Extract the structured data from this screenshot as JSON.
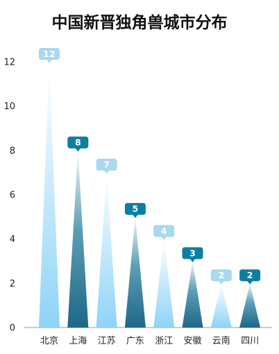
{
  "chart_data": {
    "type": "bar",
    "title": "中国新晋独角兽城市分布",
    "xlabel": "",
    "ylabel": "",
    "categories": [
      "北京",
      "上海",
      "江苏",
      "广东",
      "浙江",
      "安徽",
      "云南",
      "四川"
    ],
    "values": [
      12,
      8,
      7,
      5,
      4,
      3,
      2,
      2
    ],
    "ylim": [
      0,
      12
    ],
    "yticks": [
      "0",
      "2",
      "4",
      "6",
      "8",
      "10",
      "12"
    ],
    "grid": false,
    "legend": "none",
    "colors": {
      "light_top": "#ffffff",
      "light_bottom": "#8fd3f7",
      "light_label": "#a9d8ef",
      "dark_top": "#f1f8fb",
      "dark_mid": "#5b9db4",
      "dark_bottom": "#1f6789",
      "dark_label": "#0d7ea3",
      "axis": "#999999"
    },
    "bar_style": [
      "light",
      "dark",
      "light",
      "dark",
      "light",
      "dark",
      "light",
      "dark"
    ]
  }
}
